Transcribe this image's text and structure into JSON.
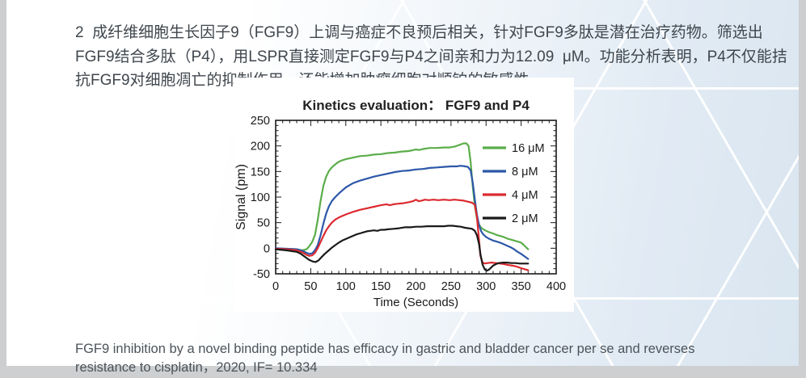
{
  "slide": {
    "paragraph": "2  成纤维细胞生长因子9（FGF9）上调与癌症不良预后相关，针对FGF9多肽是潜在治疗药物。筛选出FGF9结合多肽（P4），用LSPR直接测定FGF9与P4之间亲和力为12.09  μM。功能分析表明，P4不仅能拮抗FGF9对细胞凋亡的抑制作用，还能增加肿瘤细胞对顺铂的敏感性。",
    "citation": "FGF9 inhibition by a novel binding peptide has efficacy in gastric and bladder cancer per se and reverses resistance to cisplatin，2020, IF= 10.334"
  },
  "chart_data": {
    "type": "line",
    "title": "Kinetics evaluation：  FGF9 and P4",
    "xlabel": "Time (Seconds)",
    "ylabel": "Signal (pm)",
    "xlim": [
      0,
      400
    ],
    "ylim": [
      -50,
      250
    ],
    "xticks": [
      0,
      50,
      100,
      150,
      200,
      250,
      300,
      350,
      400
    ],
    "yticks": [
      -50,
      0,
      50,
      100,
      150,
      200,
      250
    ],
    "minor_step_x": 10,
    "minor_step_y": 10,
    "grid": false,
    "legend_position": "top-right",
    "frame_color": "#1a1a1a",
    "series": [
      {
        "name": "16 μM",
        "color": "#5bad4a",
        "points": [
          [
            0,
            -1
          ],
          [
            15,
            -1
          ],
          [
            30,
            -2
          ],
          [
            38,
            -4
          ],
          [
            44,
            -2
          ],
          [
            48,
            4
          ],
          [
            52,
            12
          ],
          [
            56,
            26
          ],
          [
            60,
            55
          ],
          [
            64,
            92
          ],
          [
            68,
            122
          ],
          [
            72,
            140
          ],
          [
            76,
            151
          ],
          [
            80,
            158
          ],
          [
            85,
            164
          ],
          [
            90,
            169
          ],
          [
            95,
            172
          ],
          [
            100,
            174
          ],
          [
            110,
            177
          ],
          [
            120,
            180
          ],
          [
            130,
            181
          ],
          [
            140,
            183
          ],
          [
            150,
            184
          ],
          [
            160,
            186
          ],
          [
            170,
            187
          ],
          [
            180,
            189
          ],
          [
            190,
            190
          ],
          [
            200,
            193
          ],
          [
            205,
            192
          ],
          [
            210,
            194
          ],
          [
            220,
            196
          ],
          [
            230,
            196
          ],
          [
            240,
            197
          ],
          [
            248,
            197
          ],
          [
            252,
            198
          ],
          [
            256,
            199
          ],
          [
            260,
            201
          ],
          [
            264,
            203
          ],
          [
            268,
            205
          ],
          [
            272,
            205
          ],
          [
            275,
            200
          ],
          [
            278,
            168
          ],
          [
            281,
            120
          ],
          [
            284,
            82
          ],
          [
            287,
            58
          ],
          [
            290,
            46
          ],
          [
            293,
            40
          ],
          [
            296,
            37
          ],
          [
            300,
            34
          ],
          [
            305,
            31
          ],
          [
            310,
            29
          ],
          [
            315,
            26
          ],
          [
            320,
            24
          ],
          [
            325,
            22
          ],
          [
            330,
            19
          ],
          [
            335,
            17
          ],
          [
            340,
            15
          ],
          [
            345,
            13
          ],
          [
            350,
            11
          ],
          [
            354,
            6
          ],
          [
            357,
            2
          ],
          [
            360,
            -2
          ]
        ]
      },
      {
        "name": "8 μM",
        "color": "#2c57a8",
        "points": [
          [
            0,
            0
          ],
          [
            15,
            -1
          ],
          [
            30,
            -2
          ],
          [
            38,
            -5
          ],
          [
            44,
            -9
          ],
          [
            48,
            -11
          ],
          [
            52,
            -10
          ],
          [
            56,
            -4
          ],
          [
            60,
            6
          ],
          [
            64,
            25
          ],
          [
            68,
            48
          ],
          [
            72,
            68
          ],
          [
            76,
            82
          ],
          [
            80,
            92
          ],
          [
            85,
            100
          ],
          [
            90,
            107
          ],
          [
            95,
            113
          ],
          [
            100,
            119
          ],
          [
            105,
            123
          ],
          [
            110,
            127
          ],
          [
            120,
            132
          ],
          [
            130,
            136
          ],
          [
            140,
            140
          ],
          [
            150,
            143
          ],
          [
            160,
            146
          ],
          [
            170,
            149
          ],
          [
            180,
            151
          ],
          [
            190,
            152
          ],
          [
            200,
            154
          ],
          [
            210,
            155
          ],
          [
            220,
            157
          ],
          [
            230,
            158
          ],
          [
            240,
            159
          ],
          [
            250,
            160
          ],
          [
            258,
            160
          ],
          [
            262,
            161
          ],
          [
            266,
            161
          ],
          [
            270,
            160
          ],
          [
            274,
            159
          ],
          [
            278,
            152
          ],
          [
            281,
            128
          ],
          [
            284,
            95
          ],
          [
            287,
            65
          ],
          [
            290,
            45
          ],
          [
            293,
            33
          ],
          [
            296,
            27
          ],
          [
            300,
            22
          ],
          [
            305,
            18
          ],
          [
            310,
            15
          ],
          [
            315,
            13
          ],
          [
            320,
            11
          ],
          [
            325,
            8
          ],
          [
            330,
            5
          ],
          [
            335,
            2
          ],
          [
            340,
            -2
          ],
          [
            345,
            -7
          ],
          [
            350,
            -11
          ],
          [
            355,
            -16
          ],
          [
            360,
            -21
          ]
        ]
      },
      {
        "name": "4 μM",
        "color": "#dc2a2f",
        "points": [
          [
            0,
            -1
          ],
          [
            15,
            -2
          ],
          [
            30,
            -4
          ],
          [
            38,
            -8
          ],
          [
            44,
            -13
          ],
          [
            48,
            -15
          ],
          [
            52,
            -14
          ],
          [
            56,
            -9
          ],
          [
            60,
            0
          ],
          [
            64,
            12
          ],
          [
            68,
            24
          ],
          [
            72,
            35
          ],
          [
            76,
            43
          ],
          [
            80,
            50
          ],
          [
            85,
            56
          ],
          [
            90,
            60
          ],
          [
            95,
            63
          ],
          [
            100,
            66
          ],
          [
            110,
            71
          ],
          [
            120,
            75
          ],
          [
            130,
            78
          ],
          [
            140,
            81
          ],
          [
            150,
            84
          ],
          [
            158,
            86
          ],
          [
            163,
            84
          ],
          [
            168,
            86
          ],
          [
            175,
            87
          ],
          [
            182,
            88
          ],
          [
            190,
            90
          ],
          [
            196,
            92
          ],
          [
            200,
            95
          ],
          [
            204,
            92
          ],
          [
            208,
            93
          ],
          [
            213,
            95
          ],
          [
            218,
            94
          ],
          [
            225,
            95
          ],
          [
            232,
            94
          ],
          [
            240,
            95
          ],
          [
            248,
            94
          ],
          [
            255,
            95
          ],
          [
            262,
            94
          ],
          [
            268,
            93
          ],
          [
            274,
            91
          ],
          [
            280,
            89
          ],
          [
            284,
            85
          ],
          [
            287,
            60
          ],
          [
            290,
            15
          ],
          [
            292,
            -15
          ],
          [
            295,
            -28
          ],
          [
            298,
            -30
          ],
          [
            302,
            -29
          ],
          [
            308,
            -28
          ],
          [
            314,
            -29
          ],
          [
            320,
            -30
          ],
          [
            326,
            -31
          ],
          [
            332,
            -33
          ],
          [
            338,
            -34
          ],
          [
            344,
            -36
          ],
          [
            350,
            -39
          ],
          [
            355,
            -41
          ],
          [
            360,
            -43
          ]
        ]
      },
      {
        "name": "2 μM",
        "color": "#1a1a1a",
        "points": [
          [
            0,
            -2
          ],
          [
            15,
            -4
          ],
          [
            30,
            -7
          ],
          [
            36,
            -11
          ],
          [
            42,
            -17
          ],
          [
            48,
            -23
          ],
          [
            53,
            -26
          ],
          [
            57,
            -27
          ],
          [
            61,
            -24
          ],
          [
            65,
            -18
          ],
          [
            70,
            -11
          ],
          [
            75,
            -5
          ],
          [
            80,
            1
          ],
          [
            85,
            6
          ],
          [
            90,
            11
          ],
          [
            95,
            15
          ],
          [
            100,
            18
          ],
          [
            105,
            21
          ],
          [
            110,
            24
          ],
          [
            115,
            27
          ],
          [
            120,
            29
          ],
          [
            125,
            31
          ],
          [
            130,
            33
          ],
          [
            135,
            34
          ],
          [
            140,
            35
          ],
          [
            145,
            34
          ],
          [
            150,
            36
          ],
          [
            155,
            36
          ],
          [
            160,
            37
          ],
          [
            168,
            38
          ],
          [
            176,
            39
          ],
          [
            184,
            41
          ],
          [
            192,
            41
          ],
          [
            200,
            42
          ],
          [
            208,
            42
          ],
          [
            216,
            43
          ],
          [
            224,
            43
          ],
          [
            232,
            43
          ],
          [
            240,
            43
          ],
          [
            246,
            44
          ],
          [
            252,
            44
          ],
          [
            258,
            43
          ],
          [
            264,
            42
          ],
          [
            270,
            40
          ],
          [
            275,
            39
          ],
          [
            280,
            38
          ],
          [
            284,
            34
          ],
          [
            287,
            25
          ],
          [
            290,
            8
          ],
          [
            292,
            -12
          ],
          [
            295,
            -32
          ],
          [
            298,
            -41
          ],
          [
            301,
            -44
          ],
          [
            304,
            -42
          ],
          [
            307,
            -38
          ],
          [
            310,
            -34
          ],
          [
            314,
            -31
          ],
          [
            318,
            -29
          ],
          [
            324,
            -28
          ],
          [
            330,
            -28
          ],
          [
            336,
            -29
          ],
          [
            342,
            -29
          ],
          [
            348,
            -30
          ],
          [
            354,
            -30
          ],
          [
            360,
            -30
          ]
        ]
      }
    ]
  }
}
